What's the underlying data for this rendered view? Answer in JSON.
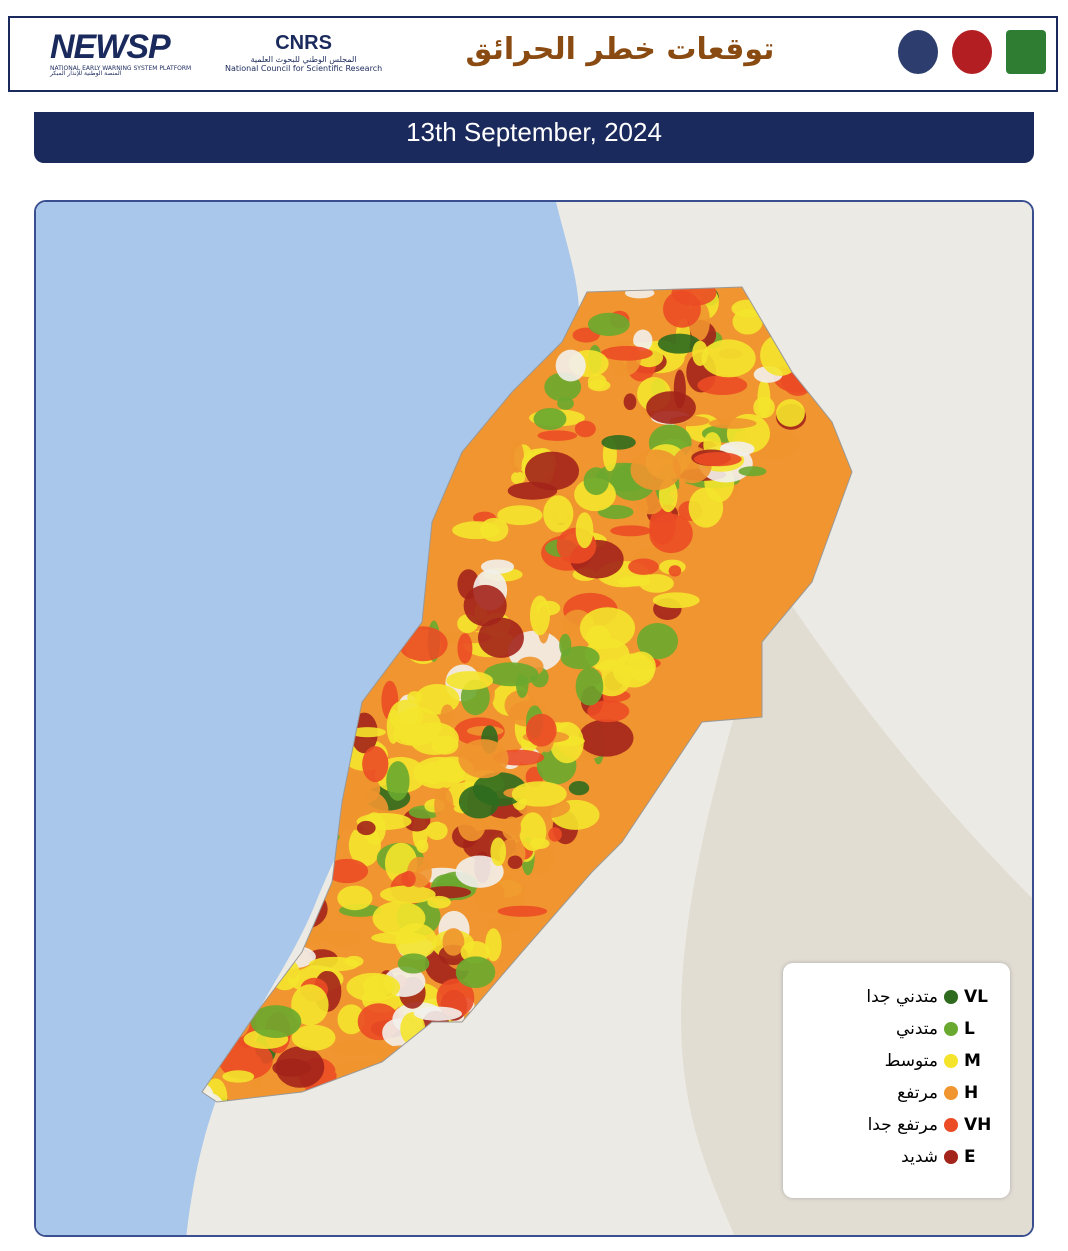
{
  "header": {
    "brand": {
      "name": "NEWSP",
      "subtitle_en": "NATIONAL EARLY WARNING SYSTEM PLATFORM",
      "subtitle_ar": "المنصة الوطنية للإنذار المبكر"
    },
    "partner": {
      "name": "CNRS",
      "name_ar": "المجلس الوطني للبحوث العلمية",
      "name_en": "National Council for Scientific Research"
    },
    "title": "توقعات خطر الحرائق"
  },
  "date": "13th September, 2024",
  "legend": {
    "items": [
      {
        "code": "VL",
        "label": "متدني جدا",
        "color": "#2f6b1e"
      },
      {
        "code": "L",
        "label": "متدني",
        "color": "#6aa92f"
      },
      {
        "code": "M",
        "label": "متوسط",
        "color": "#f4e42c"
      },
      {
        "code": "H",
        "label": "مرتفع",
        "color": "#f0952f"
      },
      {
        "code": "VH",
        "label": "مرتفع جدا",
        "color": "#eb4b25"
      },
      {
        "code": "E",
        "label": "شديد",
        "color": "#a3241b"
      }
    ]
  }
}
